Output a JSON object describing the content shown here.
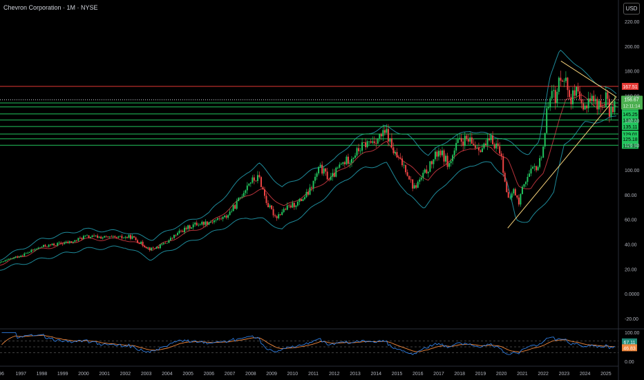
{
  "header": {
    "title": "Chevron Corporation · 1M · NYSE",
    "currency": "USD"
  },
  "colors": {
    "background": "#000000",
    "up": "#26a69a",
    "candle_up": "#22c55e",
    "candle_down": "#ef4444",
    "bb_band": "#1e8a9a",
    "bb_mid": "#b7323a",
    "resistance": "#e53935",
    "support": "#22c55e",
    "triangle": "#f5d17a",
    "rsi": "#2f7de1",
    "rsi_ma": "#f0883e"
  },
  "chart_data": [
    {
      "type": "candlestick",
      "title": "Chevron Corporation · 1M · NYSE",
      "y_axis_ticks": [
        "220.00",
        "200.00",
        "180.00",
        "160.00",
        "140.00",
        "120.00",
        "100.00",
        "80.00",
        "60.00",
        "40.00",
        "20.00",
        "0.0000",
        "-20.00"
      ],
      "ylim": [
        -25,
        225
      ],
      "x_axis_ticks": [
        "996",
        "1997",
        "1998",
        "1999",
        "2000",
        "2001",
        "2002",
        "2003",
        "2004",
        "2005",
        "2006",
        "2007",
        "2008",
        "2009",
        "2010",
        "2011",
        "2012",
        "2013",
        "2014",
        "2015",
        "2016",
        "2017",
        "2018",
        "2019",
        "2020",
        "2021",
        "2022",
        "2023",
        "2024",
        "2025"
      ],
      "xlim": [
        1996.0,
        2025.6
      ],
      "anchors": [
        [
          1996.0,
          25
        ],
        [
          1997.0,
          31
        ],
        [
          1998.0,
          38
        ],
        [
          1998.7,
          40
        ],
        [
          1999.5,
          42
        ],
        [
          2000.0,
          46
        ],
        [
          2000.6,
          46
        ],
        [
          2001.5,
          45
        ],
        [
          2002.3,
          46
        ],
        [
          2002.8,
          40
        ],
        [
          2003.2,
          36
        ],
        [
          2003.6,
          38
        ],
        [
          2004.0,
          42
        ],
        [
          2004.6,
          50
        ],
        [
          2005.3,
          56
        ],
        [
          2006.0,
          58
        ],
        [
          2006.8,
          62
        ],
        [
          2007.3,
          72
        ],
        [
          2007.9,
          90
        ],
        [
          2008.4,
          94
        ],
        [
          2008.8,
          72
        ],
        [
          2009.2,
          62
        ],
        [
          2009.6,
          68
        ],
        [
          2010.3,
          74
        ],
        [
          2010.8,
          82
        ],
        [
          2011.3,
          102
        ],
        [
          2011.8,
          92
        ],
        [
          2012.3,
          104
        ],
        [
          2012.8,
          110
        ],
        [
          2013.4,
          120
        ],
        [
          2013.9,
          124
        ],
        [
          2014.5,
          130
        ],
        [
          2014.9,
          112
        ],
        [
          2015.4,
          102
        ],
        [
          2015.8,
          85
        ],
        [
          2016.2,
          94
        ],
        [
          2016.6,
          104
        ],
        [
          2017.0,
          116
        ],
        [
          2017.5,
          104
        ],
        [
          2017.9,
          122
        ],
        [
          2018.3,
          124
        ],
        [
          2018.7,
          120
        ],
        [
          2019.1,
          118
        ],
        [
          2019.5,
          124
        ],
        [
          2019.9,
          118
        ],
        [
          2020.15,
          95
        ],
        [
          2020.3,
          74
        ],
        [
          2020.6,
          84
        ],
        [
          2020.85,
          72
        ],
        [
          2021.0,
          88
        ],
        [
          2021.5,
          100
        ],
        [
          2021.8,
          104
        ],
        [
          2022.0,
          120
        ],
        [
          2022.2,
          150
        ],
        [
          2022.4,
          170
        ],
        [
          2022.6,
          152
        ],
        [
          2022.8,
          178
        ],
        [
          2023.0,
          176
        ],
        [
          2023.3,
          158
        ],
        [
          2023.6,
          162
        ],
        [
          2023.9,
          146
        ],
        [
          2024.2,
          160
        ],
        [
          2024.5,
          155
        ],
        [
          2024.8,
          150
        ],
        [
          2025.0,
          160
        ],
        [
          2025.15,
          146
        ],
        [
          2025.3,
          150
        ],
        [
          2025.45,
          156.67
        ]
      ],
      "bb_upper_anchors": [
        [
          1996.0,
          28
        ],
        [
          1998.0,
          44
        ],
        [
          2000.0,
          52
        ],
        [
          2002.0,
          50
        ],
        [
          2003.3,
          44
        ],
        [
          2004.5,
          55
        ],
        [
          2006.0,
          65
        ],
        [
          2007.8,
          98
        ],
        [
          2008.4,
          105
        ],
        [
          2009.5,
          86
        ],
        [
          2011.0,
          100
        ],
        [
          2012.0,
          108
        ],
        [
          2013.0,
          125
        ],
        [
          2014.4,
          135
        ],
        [
          2015.5,
          128
        ],
        [
          2016.5,
          112
        ],
        [
          2017.5,
          125
        ],
        [
          2018.5,
          132
        ],
        [
          2019.5,
          128
        ],
        [
          2020.0,
          126
        ],
        [
          2020.6,
          120
        ],
        [
          2021.3,
          112
        ],
        [
          2021.8,
          122
        ],
        [
          2022.3,
          175
        ],
        [
          2022.8,
          196
        ],
        [
          2023.3,
          190
        ],
        [
          2024.0,
          178
        ],
        [
          2024.6,
          170
        ],
        [
          2025.0,
          166
        ],
        [
          2025.5,
          162
        ]
      ],
      "bb_lower_anchors": [
        [
          1996.0,
          20
        ],
        [
          1998.0,
          28
        ],
        [
          2000.0,
          36
        ],
        [
          2002.0,
          38
        ],
        [
          2003.2,
          28
        ],
        [
          2004.5,
          38
        ],
        [
          2006.0,
          48
        ],
        [
          2007.8,
          62
        ],
        [
          2008.6,
          60
        ],
        [
          2009.5,
          52
        ],
        [
          2011.0,
          70
        ],
        [
          2012.5,
          92
        ],
        [
          2013.5,
          102
        ],
        [
          2014.5,
          105
        ],
        [
          2015.5,
          80
        ],
        [
          2016.3,
          70
        ],
        [
          2017.5,
          92
        ],
        [
          2018.5,
          104
        ],
        [
          2019.5,
          106
        ],
        [
          2020.2,
          94
        ],
        [
          2020.7,
          60
        ],
        [
          2021.3,
          58
        ],
        [
          2022.0,
          72
        ],
        [
          2022.5,
          82
        ],
        [
          2023.0,
          120
        ],
        [
          2024.0,
          138
        ],
        [
          2025.0,
          140
        ],
        [
          2025.5,
          144
        ]
      ],
      "bb_mid_anchors": [
        [
          1996.0,
          24
        ],
        [
          1998.0,
          36
        ],
        [
          2000.0,
          44
        ],
        [
          2002.0,
          44
        ],
        [
          2003.3,
          36
        ],
        [
          2004.5,
          46
        ],
        [
          2006.0,
          56
        ],
        [
          2007.8,
          80
        ],
        [
          2008.6,
          84
        ],
        [
          2009.6,
          70
        ],
        [
          2011.0,
          84
        ],
        [
          2012.5,
          102
        ],
        [
          2013.5,
          114
        ],
        [
          2014.5,
          122
        ],
        [
          2015.5,
          104
        ],
        [
          2016.5,
          92
        ],
        [
          2017.5,
          108
        ],
        [
          2018.5,
          118
        ],
        [
          2019.5,
          118
        ],
        [
          2020.3,
          108
        ],
        [
          2020.8,
          88
        ],
        [
          2021.4,
          84
        ],
        [
          2022.0,
          98
        ],
        [
          2022.6,
          130
        ],
        [
          2023.1,
          158
        ],
        [
          2023.8,
          160
        ],
        [
          2024.5,
          152
        ],
        [
          2025.5,
          152
        ]
      ],
      "resistance_level": {
        "value": 167.51,
        "label": "167.51"
      },
      "current_price": {
        "value": 156.67,
        "label": "156.67",
        "countdown": "12:11:14"
      },
      "support_levels": [
        {
          "value": 154.14,
          "label": "154.14"
        },
        {
          "value": 150.9,
          "label": "150.90"
        },
        {
          "value": 145.25,
          "label": "145.25"
        },
        {
          "value": 140.33,
          "label": "140.33"
        },
        {
          "value": 135.11,
          "label": "135.11"
        },
        {
          "value": 129.01,
          "label": "129.01"
        },
        {
          "value": 125.18,
          "label": "125.18"
        },
        {
          "value": 119.92,
          "label": "119.92"
        }
      ],
      "triangle": {
        "upper": [
          [
            2022.85,
            188
          ],
          [
            2025.5,
            159
          ]
        ],
        "lower": [
          [
            2020.3,
            53
          ],
          [
            2025.5,
            159
          ]
        ]
      }
    },
    {
      "type": "line",
      "title": "RSI",
      "ylim": [
        0,
        100
      ],
      "y_axis_ticks": [
        "100.00",
        "0.00"
      ],
      "levels": [
        70,
        50,
        30
      ],
      "series": [
        {
          "key": "rsi",
          "last_label": "67.11",
          "last": 67.11
        },
        {
          "key": "rsi_ma",
          "last_label": "46.83",
          "last": 46.83
        }
      ]
    }
  ]
}
